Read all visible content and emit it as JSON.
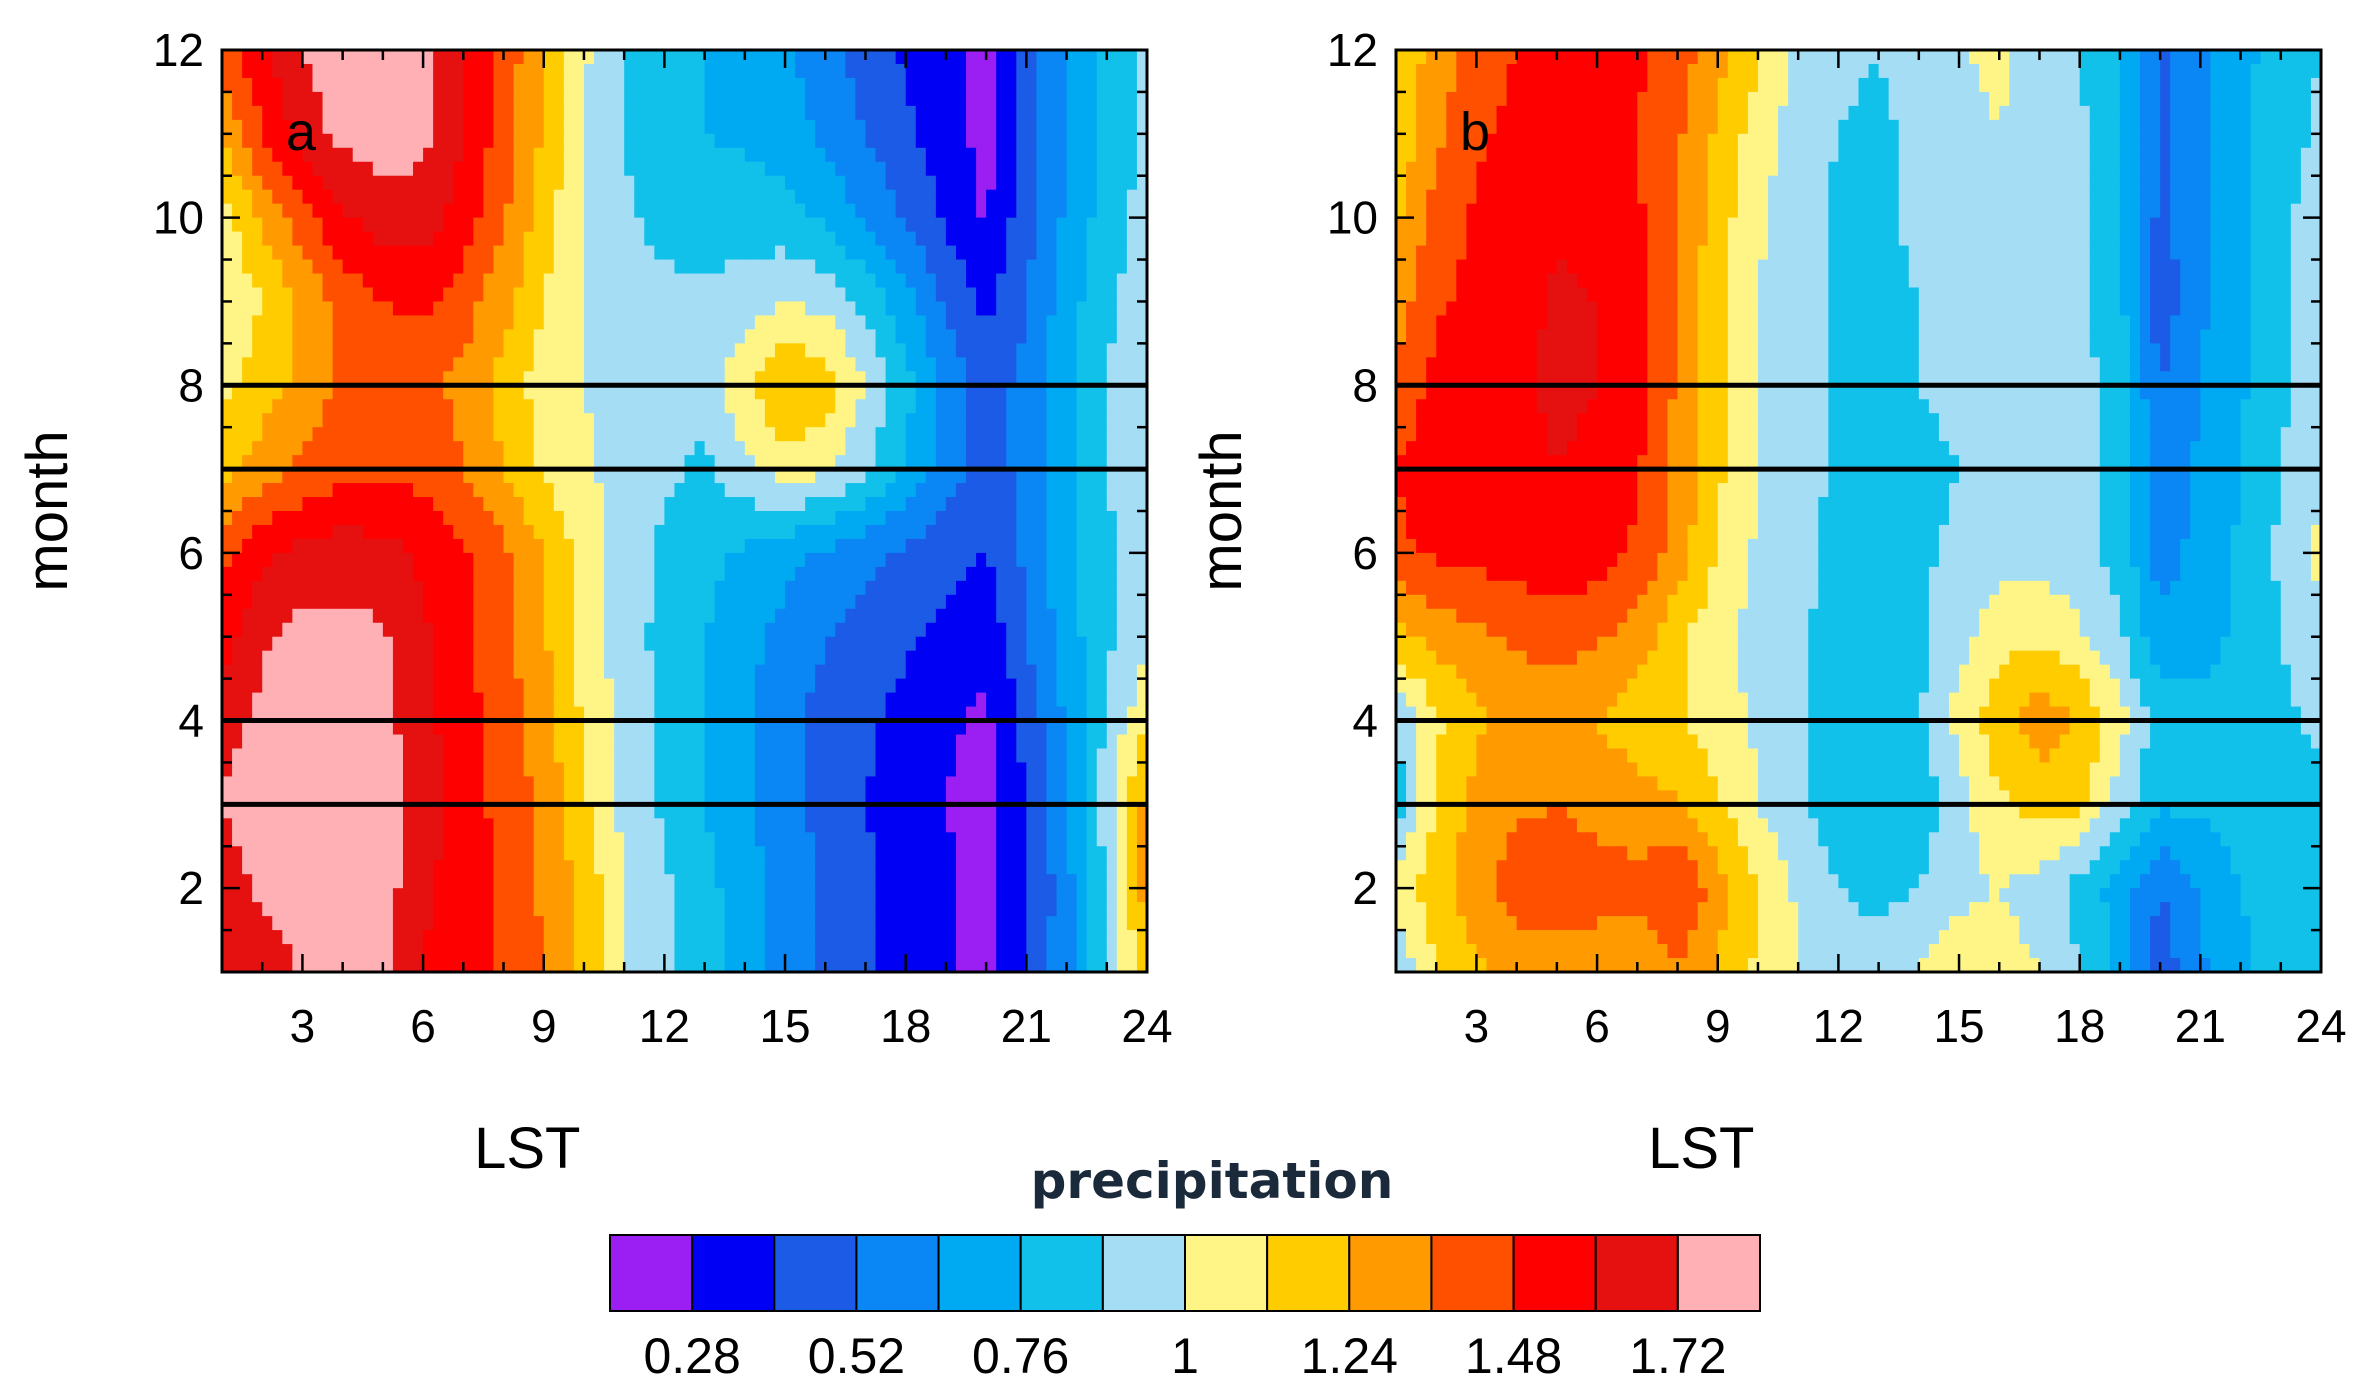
{
  "chart_data": [
    {
      "type": "heatmap",
      "panel_label": "a",
      "xlabel": "LST",
      "ylabel": "month",
      "xlim": [
        1,
        24
      ],
      "ylim": [
        1,
        12
      ],
      "x_ticks": [
        "3",
        "6",
        "9",
        "12",
        "15",
        "18",
        "21",
        "24"
      ],
      "y_ticks": [
        "2",
        "4",
        "6",
        "8",
        "10",
        "12"
      ],
      "reference_lines_month": [
        3,
        4,
        7,
        8
      ],
      "x": [
        1,
        2,
        3,
        4,
        5,
        6,
        7,
        8,
        9,
        10,
        11,
        12,
        13,
        14,
        15,
        16,
        17,
        18,
        19,
        20,
        21,
        22,
        23,
        24
      ],
      "y": [
        1,
        2,
        3,
        4,
        5,
        6,
        7,
        8,
        9,
        10,
        11,
        12
      ],
      "z": [
        [
          1.72,
          1.6,
          1.76,
          1.78,
          1.76,
          1.6,
          1.52,
          1.46,
          1.36,
          1.2,
          1.0,
          0.9,
          0.8,
          0.7,
          0.6,
          0.5,
          0.42,
          0.36,
          0.3,
          0.24,
          0.4,
          0.6,
          0.9,
          1.2
        ],
        [
          1.62,
          1.76,
          1.78,
          1.8,
          1.78,
          1.62,
          1.54,
          1.46,
          1.34,
          1.2,
          1.0,
          0.9,
          0.8,
          0.7,
          0.6,
          0.5,
          0.42,
          0.36,
          0.3,
          0.24,
          0.38,
          0.6,
          0.9,
          1.3
        ],
        [
          1.74,
          1.78,
          1.8,
          1.8,
          1.78,
          1.66,
          1.54,
          1.44,
          1.32,
          1.14,
          0.96,
          0.86,
          0.76,
          0.66,
          0.56,
          0.48,
          0.4,
          0.34,
          0.28,
          0.22,
          0.4,
          0.62,
          0.94,
          1.3
        ],
        [
          1.66,
          1.76,
          1.78,
          1.78,
          1.76,
          1.64,
          1.52,
          1.42,
          1.3,
          1.1,
          0.96,
          0.86,
          0.76,
          0.66,
          0.56,
          0.48,
          0.42,
          0.36,
          0.3,
          0.26,
          0.44,
          0.66,
          0.9,
          1.1
        ],
        [
          1.54,
          1.7,
          1.76,
          1.76,
          1.74,
          1.62,
          1.52,
          1.4,
          1.26,
          1.06,
          0.94,
          0.84,
          0.76,
          0.68,
          0.6,
          0.52,
          0.46,
          0.42,
          0.36,
          0.3,
          0.52,
          0.7,
          0.86,
          0.96
        ],
        [
          1.44,
          1.58,
          1.64,
          1.66,
          1.64,
          1.58,
          1.5,
          1.38,
          1.24,
          1.06,
          0.94,
          0.86,
          0.8,
          0.74,
          0.68,
          0.62,
          0.56,
          0.5,
          0.44,
          0.4,
          0.54,
          0.72,
          0.86,
          0.94
        ],
        [
          1.2,
          1.3,
          1.38,
          1.44,
          1.46,
          1.44,
          1.36,
          1.24,
          1.1,
          1.02,
          0.96,
          0.9,
          0.86,
          0.96,
          1.06,
          1.02,
          0.9,
          0.74,
          0.58,
          0.46,
          0.56,
          0.74,
          0.88,
          0.94
        ],
        [
          1.08,
          1.18,
          1.28,
          1.38,
          1.42,
          1.4,
          1.32,
          1.2,
          1.06,
          1.0,
          0.96,
          0.94,
          0.92,
          1.1,
          1.26,
          1.2,
          1.0,
          0.8,
          0.62,
          0.46,
          0.56,
          0.74,
          0.88,
          0.94
        ],
        [
          1.0,
          1.12,
          1.26,
          1.4,
          1.48,
          1.5,
          1.42,
          1.28,
          1.12,
          1.0,
          0.94,
          0.92,
          0.9,
          0.94,
          1.0,
          0.96,
          0.84,
          0.68,
          0.5,
          0.36,
          0.52,
          0.7,
          0.86,
          0.94
        ],
        [
          1.06,
          1.26,
          1.44,
          1.58,
          1.66,
          1.66,
          1.54,
          1.38,
          1.18,
          1.0,
          0.9,
          0.84,
          0.82,
          0.82,
          0.8,
          0.74,
          0.62,
          0.5,
          0.38,
          0.26,
          0.48,
          0.66,
          0.82,
          0.92
        ],
        [
          1.26,
          1.48,
          1.66,
          1.76,
          1.78,
          1.76,
          1.6,
          1.42,
          1.22,
          1.0,
          0.88,
          0.8,
          0.76,
          0.74,
          0.7,
          0.62,
          0.52,
          0.42,
          0.34,
          0.24,
          0.46,
          0.64,
          0.8,
          0.92
        ],
        [
          1.4,
          1.58,
          1.72,
          1.78,
          1.78,
          1.78,
          1.62,
          1.44,
          1.24,
          1.02,
          0.88,
          0.8,
          0.76,
          0.72,
          0.66,
          0.56,
          0.46,
          0.38,
          0.32,
          0.24,
          0.46,
          0.62,
          0.78,
          0.9
        ]
      ]
    },
    {
      "type": "heatmap",
      "panel_label": "b",
      "xlabel": "LST",
      "ylabel": "month",
      "xlim": [
        1,
        24
      ],
      "ylim": [
        1,
        12
      ],
      "x_ticks": [
        "3",
        "6",
        "9",
        "12",
        "15",
        "18",
        "21",
        "24"
      ],
      "y_ticks": [
        "2",
        "4",
        "6",
        "8",
        "10",
        "12"
      ],
      "reference_lines_month": [
        3,
        4,
        7,
        8
      ],
      "x": [
        1,
        2,
        3,
        4,
        5,
        6,
        7,
        8,
        9,
        10,
        11,
        12,
        13,
        14,
        15,
        16,
        17,
        18,
        19,
        20,
        21,
        22,
        23,
        24
      ],
      "y": [
        1,
        2,
        3,
        4,
        5,
        6,
        7,
        8,
        9,
        10,
        11,
        12
      ],
      "z": [
        [
          0.92,
          1.1,
          1.22,
          1.3,
          1.3,
          1.28,
          1.26,
          1.34,
          1.22,
          1.1,
          1.0,
          0.94,
          0.96,
          1.0,
          1.1,
          1.06,
          1.0,
          0.88,
          0.74,
          0.44,
          0.62,
          0.74,
          0.8,
          0.8
        ],
        [
          1.06,
          1.2,
          1.32,
          1.42,
          1.44,
          1.42,
          1.4,
          1.5,
          1.3,
          1.12,
          0.98,
          0.88,
          0.84,
          0.88,
          0.96,
          1.0,
          0.94,
          0.84,
          0.7,
          0.52,
          0.66,
          0.76,
          0.8,
          0.8
        ],
        [
          0.8,
          1.12,
          1.28,
          1.34,
          1.36,
          1.32,
          1.28,
          1.26,
          1.14,
          1.0,
          0.9,
          0.8,
          0.76,
          0.8,
          0.96,
          1.1,
          1.18,
          1.14,
          0.94,
          0.78,
          0.78,
          0.8,
          0.82,
          0.84
        ],
        [
          0.9,
          1.1,
          1.22,
          1.28,
          1.28,
          1.24,
          1.18,
          1.14,
          1.06,
          0.98,
          0.9,
          0.82,
          0.78,
          0.86,
          1.04,
          1.2,
          1.3,
          1.24,
          1.04,
          0.82,
          0.8,
          0.8,
          0.86,
          0.9
        ],
        [
          1.2,
          1.28,
          1.34,
          1.38,
          1.4,
          1.38,
          1.3,
          1.16,
          1.02,
          0.96,
          0.9,
          0.84,
          0.82,
          0.86,
          0.96,
          1.08,
          1.1,
          1.02,
          0.9,
          0.68,
          0.72,
          0.78,
          0.88,
          0.96
        ],
        [
          1.46,
          1.5,
          1.52,
          1.54,
          1.56,
          1.54,
          1.46,
          1.3,
          1.12,
          0.98,
          0.9,
          0.86,
          0.84,
          0.86,
          0.9,
          0.96,
          0.96,
          0.92,
          0.84,
          0.58,
          0.68,
          0.78,
          0.9,
          1.04
        ],
        [
          1.48,
          1.54,
          1.56,
          1.58,
          1.6,
          1.58,
          1.5,
          1.32,
          1.14,
          1.0,
          0.92,
          0.86,
          0.84,
          0.86,
          0.88,
          0.94,
          0.94,
          0.92,
          0.84,
          0.56,
          0.66,
          0.76,
          0.88,
          0.96
        ],
        [
          1.4,
          1.52,
          1.56,
          1.58,
          1.62,
          1.6,
          1.52,
          1.34,
          1.16,
          1.0,
          0.92,
          0.86,
          0.84,
          0.88,
          0.9,
          0.96,
          0.96,
          0.92,
          0.82,
          0.52,
          0.64,
          0.74,
          0.86,
          0.94
        ],
        [
          1.3,
          1.46,
          1.52,
          1.56,
          1.62,
          1.6,
          1.52,
          1.34,
          1.16,
          1.0,
          0.92,
          0.86,
          0.86,
          0.88,
          0.94,
          1.0,
          0.98,
          0.92,
          0.8,
          0.44,
          0.62,
          0.74,
          0.86,
          0.92
        ],
        [
          1.22,
          1.4,
          1.5,
          1.54,
          1.58,
          1.56,
          1.5,
          1.36,
          1.18,
          1.02,
          0.92,
          0.86,
          0.86,
          0.9,
          0.96,
          1.0,
          0.98,
          0.92,
          0.8,
          0.48,
          0.62,
          0.74,
          0.86,
          0.92
        ],
        [
          1.14,
          1.34,
          1.46,
          1.52,
          1.52,
          1.52,
          1.48,
          1.38,
          1.22,
          1.06,
          0.94,
          0.88,
          0.86,
          0.9,
          0.96,
          1.0,
          0.96,
          0.9,
          0.78,
          0.5,
          0.62,
          0.74,
          0.84,
          0.9
        ],
        [
          1.12,
          1.3,
          1.4,
          1.48,
          1.5,
          1.52,
          1.5,
          1.42,
          1.28,
          1.14,
          0.98,
          0.9,
          0.88,
          0.92,
          1.0,
          1.02,
          0.96,
          0.88,
          0.76,
          0.5,
          0.62,
          0.72,
          0.82,
          0.88
        ]
      ]
    }
  ],
  "colorbar": {
    "title": "precipitation",
    "labels": [
      "0.28",
      "0.52",
      "0.76",
      "1",
      "1.24",
      "1.48",
      "1.72"
    ],
    "levels": [
      0.28,
      0.4,
      0.52,
      0.64,
      0.76,
      0.88,
      1.0,
      1.12,
      1.24,
      1.36,
      1.48,
      1.6,
      1.72
    ],
    "colors": [
      "#9b1ef2",
      "#0000f5",
      "#1b5be6",
      "#0a86f5",
      "#00aaf2",
      "#11c1ea",
      "#a5ddf5",
      "#fef586",
      "#ffcc00",
      "#ff9a00",
      "#ff5000",
      "#ff0000",
      "#e51010",
      "#ffb0b5"
    ]
  },
  "reference_line_color": "#000000"
}
